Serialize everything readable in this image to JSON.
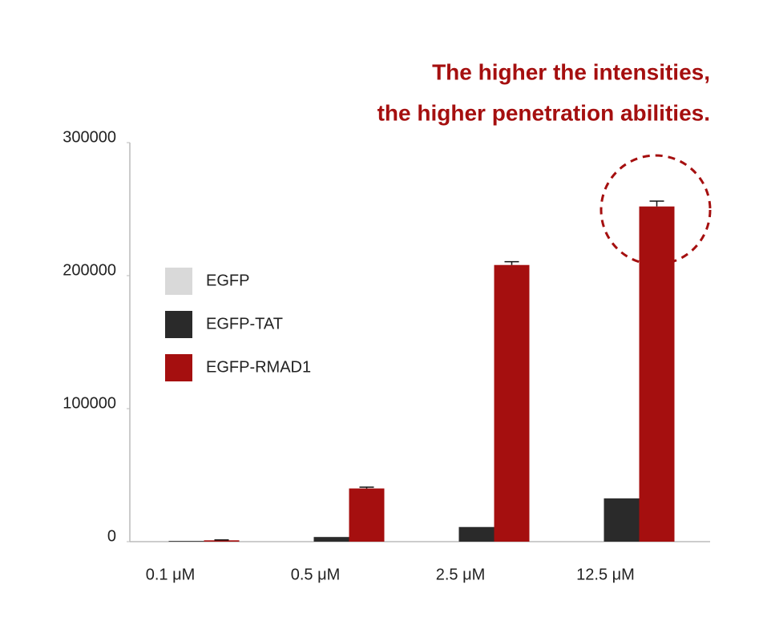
{
  "chart_data": {
    "type": "bar",
    "title": [
      "The higher the intensities,",
      "the higher penetration abilities."
    ],
    "categories": [
      "0.1 μM",
      "0.5 μM",
      "2.5 μM",
      "12.5 μM"
    ],
    "series": [
      {
        "name": "EGFP",
        "color": "#d9d9d9",
        "values": [
          0,
          0,
          0,
          0
        ]
      },
      {
        "name": "EGFP-TAT",
        "color": "#2a2a2a",
        "values": [
          500,
          3500,
          11000,
          32500
        ]
      },
      {
        "name": "EGFP-RMAD1",
        "color": "#a50f0f",
        "values": [
          1000,
          40000,
          208000,
          252000
        ],
        "errors": [
          300,
          1000,
          2500,
          4000
        ]
      }
    ],
    "ylim": [
      0,
      300000
    ],
    "yticks": [
      0,
      100000,
      200000,
      300000
    ]
  }
}
